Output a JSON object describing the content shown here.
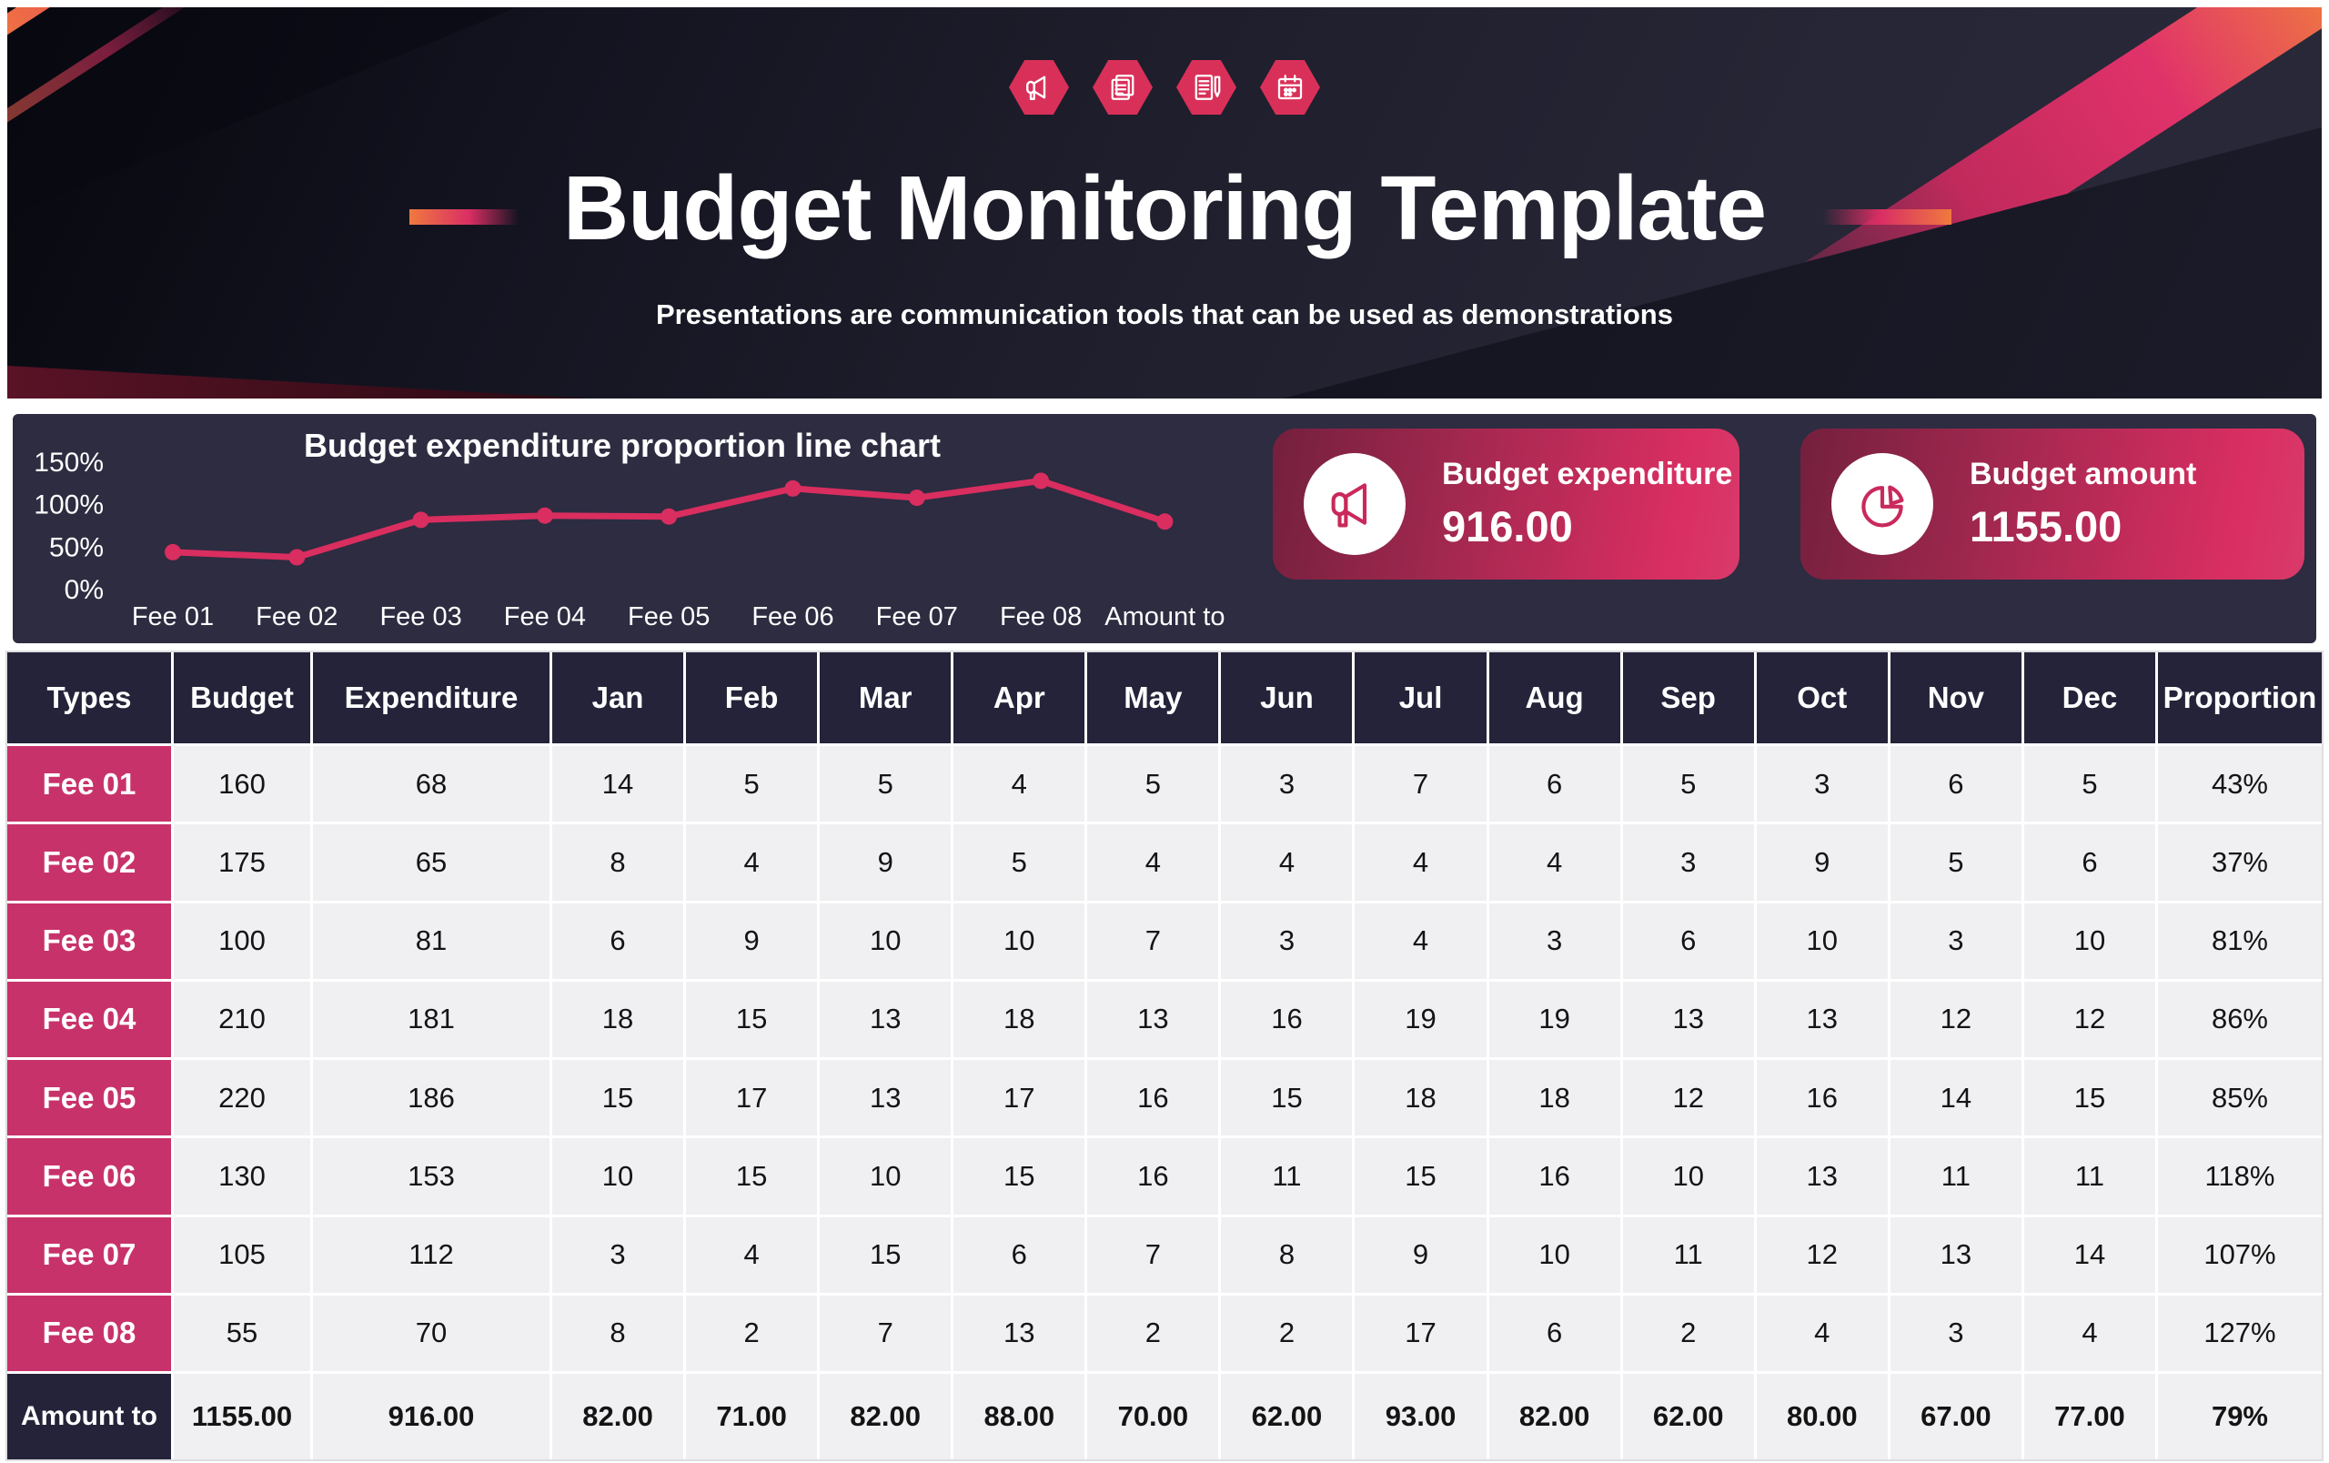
{
  "banner": {
    "title": "Budget Monitoring Template",
    "subtitle": "Presentations are communication tools that can be used as demonstrations",
    "icons": [
      "megaphone-icon",
      "documents-icon",
      "contract-icon",
      "calendar-icon"
    ]
  },
  "chart_data": {
    "type": "line",
    "title": "Budget expenditure proportion line chart",
    "categories": [
      "Fee 01",
      "Fee 02",
      "Fee 03",
      "Fee 04",
      "Fee 05",
      "Fee 06",
      "Fee 07",
      "Fee 08",
      "Amount to"
    ],
    "values": [
      43,
      37,
      81,
      86,
      85,
      118,
      107,
      127,
      79
    ],
    "unit": "%",
    "ylim": [
      0,
      150
    ],
    "yticks": [
      0,
      50,
      100,
      150
    ],
    "ytick_labels": [
      "0%",
      "50%",
      "100%",
      "150%"
    ],
    "grid": false,
    "legend": "none",
    "line_color": "#d92e5f"
  },
  "summary_cards": [
    {
      "icon": "megaphone-icon",
      "label": "Budget expenditure",
      "value": "916.00"
    },
    {
      "icon": "pie-chart-icon",
      "label": "Budget amount",
      "value": "1155.00"
    }
  ],
  "table": {
    "columns": [
      "Types",
      "Budget",
      "Expenditure",
      "Jan",
      "Feb",
      "Mar",
      "Apr",
      "May",
      "Jun",
      "Jul",
      "Aug",
      "Sep",
      "Oct",
      "Nov",
      "Dec",
      "Proportion"
    ],
    "rows": [
      [
        "Fee 01",
        "160",
        "68",
        "14",
        "5",
        "5",
        "4",
        "5",
        "3",
        "7",
        "6",
        "5",
        "3",
        "6",
        "5",
        "43%"
      ],
      [
        "Fee 02",
        "175",
        "65",
        "8",
        "4",
        "9",
        "5",
        "4",
        "4",
        "4",
        "4",
        "3",
        "9",
        "5",
        "6",
        "37%"
      ],
      [
        "Fee 03",
        "100",
        "81",
        "6",
        "9",
        "10",
        "10",
        "7",
        "3",
        "4",
        "3",
        "6",
        "10",
        "3",
        "10",
        "81%"
      ],
      [
        "Fee 04",
        "210",
        "181",
        "18",
        "15",
        "13",
        "18",
        "13",
        "16",
        "19",
        "19",
        "13",
        "13",
        "12",
        "12",
        "86%"
      ],
      [
        "Fee 05",
        "220",
        "186",
        "15",
        "17",
        "13",
        "17",
        "16",
        "15",
        "18",
        "18",
        "12",
        "16",
        "14",
        "15",
        "85%"
      ],
      [
        "Fee 06",
        "130",
        "153",
        "10",
        "15",
        "10",
        "15",
        "16",
        "11",
        "15",
        "16",
        "10",
        "13",
        "11",
        "11",
        "118%"
      ],
      [
        "Fee 07",
        "105",
        "112",
        "3",
        "4",
        "15",
        "6",
        "7",
        "8",
        "9",
        "10",
        "11",
        "12",
        "13",
        "14",
        "107%"
      ],
      [
        "Fee 08",
        "55",
        "70",
        "8",
        "2",
        "7",
        "13",
        "2",
        "2",
        "17",
        "6",
        "2",
        "4",
        "3",
        "4",
        "127%"
      ]
    ],
    "total_row": [
      "Amount to",
      "1155.00",
      "916.00",
      "82.00",
      "71.00",
      "82.00",
      "88.00",
      "70.00",
      "62.00",
      "93.00",
      "82.00",
      "62.00",
      "80.00",
      "67.00",
      "77.00",
      "79%"
    ]
  },
  "colors": {
    "accent_pink": "#d92e5f",
    "accent_orange": "#f0793f",
    "header_navy": "#242339",
    "row_label_pink": "#c8326a",
    "strip_navy": "#2d2c41",
    "cell_gray": "#f0eff1",
    "banner_dark": "#1c1c2a"
  }
}
